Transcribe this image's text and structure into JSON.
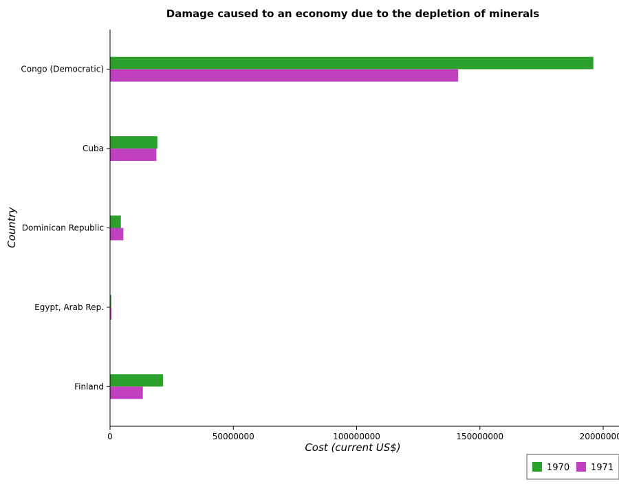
{
  "chart_data": {
    "type": "bar",
    "orientation": "horizontal",
    "title": "Damage caused to an economy due to the depletion of minerals",
    "xlabel": "Cost (current US$)",
    "ylabel": "Country",
    "categories": [
      "Congo (Democratic)",
      "Cuba",
      "Dominican Republic",
      "Egypt, Arab Rep.",
      "Finland"
    ],
    "series": [
      {
        "name": "1970",
        "color": "#2ca02c",
        "values": [
          196000000,
          19200000,
          4400000,
          500000,
          21500000
        ]
      },
      {
        "name": "1971",
        "color": "#c040c0",
        "values": [
          141200000,
          18800000,
          5400000,
          600000,
          13300000
        ]
      }
    ],
    "xlim": [
      0,
      200000000
    ],
    "xticks": [
      0,
      50000000,
      100000000,
      150000000,
      200000000
    ],
    "xtick_labels": [
      "0",
      "50000000",
      "100000000",
      "150000000",
      "200000000"
    ],
    "grid": false,
    "legend_position": "bottom-right",
    "colors": {
      "bar_1970": "#2ca02c",
      "bar_1971": "#c040c0",
      "axis": "#000000"
    }
  }
}
